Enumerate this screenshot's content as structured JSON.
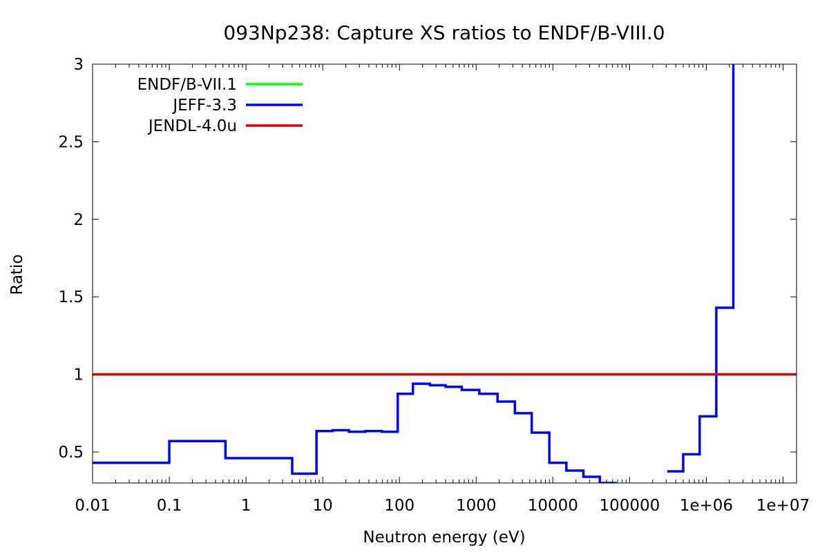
{
  "chart_data": {
    "type": "line",
    "title": "093Np238: Capture XS ratios to ENDF/B-VIII.0",
    "xlabel": "Neutron energy (eV)",
    "ylabel": "Ratio",
    "x_scale": "log",
    "xlim": [
      0.01,
      15000000
    ],
    "ylim": [
      0.3,
      3
    ],
    "x_ticks": [
      {
        "value": 0.01,
        "label": "0.01"
      },
      {
        "value": 0.1,
        "label": "0.1"
      },
      {
        "value": 1,
        "label": "1"
      },
      {
        "value": 10,
        "label": "10"
      },
      {
        "value": 100,
        "label": "100"
      },
      {
        "value": 1000,
        "label": "1000"
      },
      {
        "value": 10000,
        "label": "10000"
      },
      {
        "value": 100000,
        "label": "100000"
      },
      {
        "value": 1000000,
        "label": "1e+06"
      },
      {
        "value": 10000000,
        "label": "1e+07"
      }
    ],
    "y_ticks": [
      {
        "value": 0.5,
        "label": "0.5"
      },
      {
        "value": 1,
        "label": "1"
      },
      {
        "value": 1.5,
        "label": "1.5"
      },
      {
        "value": 2,
        "label": "2"
      },
      {
        "value": 2.5,
        "label": "2.5"
      },
      {
        "value": 3,
        "label": "3"
      }
    ],
    "legend_position": "top-left",
    "series": [
      {
        "name": "ENDF/B-VII.1",
        "color": "#00ff00",
        "style": "line",
        "x": [
          0.01,
          15000000
        ],
        "y": [
          1,
          1
        ]
      },
      {
        "name": "JEFF-3.3",
        "color": "#0000ff",
        "style": "step",
        "bins": [
          {
            "x0": 0.01,
            "x1": 0.1,
            "y": 0.43
          },
          {
            "x0": 0.1,
            "x1": 0.54,
            "y": 0.57
          },
          {
            "x0": 0.54,
            "x1": 4,
            "y": 0.46
          },
          {
            "x0": 4,
            "x1": 8.3,
            "y": 0.36
          },
          {
            "x0": 8.3,
            "x1": 13.5,
            "y": 0.635
          },
          {
            "x0": 13.5,
            "x1": 22,
            "y": 0.64
          },
          {
            "x0": 22,
            "x1": 36,
            "y": 0.63
          },
          {
            "x0": 36,
            "x1": 59,
            "y": 0.635
          },
          {
            "x0": 59,
            "x1": 95,
            "y": 0.63
          },
          {
            "x0": 95,
            "x1": 150,
            "y": 0.875
          },
          {
            "x0": 150,
            "x1": 250,
            "y": 0.94
          },
          {
            "x0": 250,
            "x1": 400,
            "y": 0.93
          },
          {
            "x0": 400,
            "x1": 650,
            "y": 0.92
          },
          {
            "x0": 650,
            "x1": 1100,
            "y": 0.9
          },
          {
            "x0": 1100,
            "x1": 1900,
            "y": 0.875
          },
          {
            "x0": 1900,
            "x1": 3200,
            "y": 0.825
          },
          {
            "x0": 3200,
            "x1": 5300,
            "y": 0.75
          },
          {
            "x0": 5300,
            "x1": 9000,
            "y": 0.625
          },
          {
            "x0": 9000,
            "x1": 15000,
            "y": 0.43
          },
          {
            "x0": 15000,
            "x1": 25000,
            "y": 0.38
          },
          {
            "x0": 25000,
            "x1": 41000,
            "y": 0.34
          },
          {
            "x0": 41000,
            "x1": 68000,
            "y": 0.3
          },
          {
            "x0": 310000,
            "x1": 500000,
            "y": 0.375
          },
          {
            "x0": 500000,
            "x1": 820000,
            "y": 0.485
          },
          {
            "x0": 820000,
            "x1": 1350000,
            "y": 0.73
          },
          {
            "x0": 1350000,
            "x1": 2250000,
            "y": 1.43
          },
          {
            "x0": 2250000,
            "x1": 2250001,
            "y": 3.0
          }
        ]
      },
      {
        "name": "JENDL-4.0u",
        "color": "#dd0000",
        "style": "line",
        "x": [
          0.01,
          15000000
        ],
        "y": [
          1,
          1
        ]
      }
    ]
  }
}
